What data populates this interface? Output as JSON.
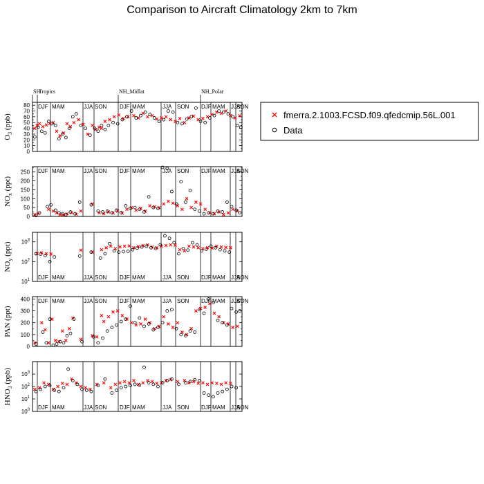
{
  "chart_data": {
    "type": "scatter",
    "title": "Comparison to Aircraft Climatology  2km to 7km",
    "regions": [
      "SH",
      "Tropics",
      "NH_Midlat",
      "NH_Polar"
    ],
    "seasons": [
      "DJF",
      "MAM",
      "JJA",
      "SON"
    ],
    "legend": {
      "placement": "right",
      "entries": [
        {
          "name": "fmerra.2.1003.FCSD.f09.qfedcmip.56L.001",
          "marker": "x",
          "color": "#ff0000"
        },
        {
          "name": "Data",
          "marker": "o",
          "color": "#000000"
        }
      ]
    },
    "panels": [
      {
        "ylabel_main": "O",
        "ylabel_sub": "3",
        "ylabel_unit": " (ppb)",
        "scale": "linear",
        "ylim": [
          0,
          85
        ],
        "grid": false,
        "yticks": [
          "0",
          "10",
          "20",
          "30",
          "40",
          "50",
          "60",
          "70",
          "80"
        ],
        "season_label_pos": "top",
        "series": [
          {
            "name": "model",
            "x": [
              2,
              4,
              6,
              9,
              12,
              15,
              18,
              21,
              24,
              27,
              30,
              33,
              36,
              40,
              44,
              48,
              52,
              55,
              58,
              60,
              63,
              67,
              71,
              75,
              79,
              83,
              88,
              92,
              96,
              100,
              104,
              108,
              112,
              116,
              120,
              124,
              128,
              132,
              136,
              140,
              144,
              148,
              152,
              156,
              160,
              164,
              168,
              172,
              176,
              180
            ],
            "y": [
              40,
              45,
              48,
              43,
              46,
              48,
              50,
              35,
              27,
              32,
              48,
              43,
              50,
              55,
              47,
              30,
              45,
              38,
              42,
              40,
              52,
              55,
              60,
              63,
              57,
              60,
              62,
              58,
              66,
              60,
              62,
              56,
              58,
              60,
              55,
              52,
              57,
              50,
              58,
              61,
              55,
              57,
              60,
              64,
              68,
              66,
              70,
              62,
              58,
              62
            ]
          },
          {
            "name": "data",
            "x": [
              2,
              5,
              8,
              11,
              14,
              17,
              20,
              23,
              26,
              29,
              32,
              35,
              38,
              42,
              46,
              50,
              54,
              57,
              60,
              63,
              66,
              70,
              74,
              78,
              82,
              86,
              90,
              94,
              98,
              102,
              106,
              110,
              114,
              118,
              122,
              126,
              130,
              134,
              138,
              142,
              146,
              150,
              154,
              158,
              162,
              166,
              170,
              174,
              178,
              181
            ],
            "y": [
              25,
              42,
              35,
              32,
              52,
              48,
              45,
              22,
              30,
              24,
              40,
              60,
              65,
              45,
              40,
              28,
              40,
              35,
              45,
              38,
              45,
              50,
              48,
              55,
              60,
              70,
              58,
              62,
              68,
              64,
              58,
              52,
              55,
              70,
              68,
              50,
              48,
              56,
              60,
              75,
              52,
              50,
              58,
              62,
              70,
              68,
              65,
              60,
              45,
              42
            ]
          }
        ]
      },
      {
        "ylabel_main": "NO",
        "ylabel_sub": "x",
        "ylabel_unit": " (ppt)",
        "scale": "linear",
        "ylim": [
          0,
          280
        ],
        "grid": false,
        "yticks": [
          "0",
          "50",
          "100",
          "150",
          "200",
          "250"
        ],
        "season_label_pos": "top",
        "series": [
          {
            "name": "model",
            "x": [
              2,
              5,
              14,
              18,
              21,
              24,
              27,
              30,
              34,
              38,
              42,
              52,
              58,
              62,
              66,
              70,
              74,
              78,
              82,
              86,
              90,
              94,
              98,
              102,
              106,
              110,
              114,
              118,
              122,
              126,
              130,
              134,
              138,
              142,
              146,
              150,
              154,
              158,
              162,
              166,
              170,
              174,
              178
            ],
            "y": [
              10,
              15,
              40,
              30,
              20,
              10,
              8,
              15,
              20,
              12,
              30,
              70,
              20,
              15,
              25,
              20,
              30,
              18,
              40,
              50,
              35,
              45,
              30,
              60,
              55,
              50,
              70,
              85,
              75,
              60,
              40,
              100,
              50,
              80,
              70,
              40,
              20,
              15,
              25,
              10,
              20,
              40,
              30
            ]
          },
          {
            "name": "data",
            "x": [
              3,
              6,
              13,
              16,
              20,
              23,
              26,
              29,
              33,
              37,
              41,
              51,
              57,
              61,
              65,
              69,
              73,
              77,
              81,
              85,
              89,
              93,
              97,
              101,
              105,
              109,
              113,
              117,
              121,
              125,
              129,
              133,
              137,
              141,
              145,
              149,
              153,
              157,
              161,
              165,
              169,
              173,
              177,
              180
            ],
            "y": [
              5,
              20,
              55,
              65,
              35,
              20,
              15,
              10,
              25,
              15,
              80,
              65,
              30,
              25,
              30,
              20,
              35,
              22,
              60,
              45,
              50,
              40,
              25,
              110,
              50,
              45,
              280,
              270,
              140,
              70,
              195,
              80,
              145,
              40,
              30,
              15,
              20,
              15,
              30,
              25,
              80,
              55,
              35,
              20
            ]
          }
        ]
      },
      {
        "ylabel_main": "NO",
        "ylabel_sub": "y",
        "ylabel_unit": " (ppt)",
        "scale": "log",
        "ylim": [
          10,
          3000
        ],
        "grid": false,
        "yticks": [
          "10",
          "10",
          "10"
        ],
        "yticks_sup": [
          "1",
          "2",
          "3"
        ],
        "season_label_pos": "bottom",
        "series": [
          {
            "name": "model",
            "x": [
              4,
              8,
              12,
              16,
              42,
              52,
              60,
              64,
              68,
              72,
              76,
              80,
              84,
              88,
              92,
              96,
              100,
              104,
              108,
              112,
              116,
              120,
              124,
              128,
              132,
              136,
              140,
              144,
              148,
              152,
              156,
              160,
              164,
              168,
              172
            ],
            "y": [
              260,
              280,
              250,
              240,
              380,
              300,
              400,
              500,
              600,
              450,
              550,
              600,
              620,
              500,
              580,
              650,
              700,
              550,
              500,
              600,
              650,
              700,
              680,
              400,
              350,
              600,
              550,
              500,
              450,
              500,
              480,
              600,
              550,
              520,
              500
            ]
          },
          {
            "name": "data",
            "x": [
              3,
              7,
              11,
              15,
              19,
              41,
              51,
              59,
              63,
              67,
              71,
              75,
              79,
              83,
              87,
              91,
              95,
              99,
              103,
              107,
              111,
              115,
              119,
              123,
              127,
              131,
              135,
              139,
              143,
              147,
              151,
              155,
              159,
              163,
              167,
              171
            ],
            "y": [
              250,
              240,
              200,
              100,
              170,
              190,
              300,
              150,
              250,
              800,
              350,
              300,
              320,
              330,
              400,
              480,
              550,
              600,
              500,
              450,
              700,
              2000,
              1500,
              900,
              250,
              450,
              380,
              900,
              700,
              350,
              420,
              600,
              500,
              400,
              350,
              300
            ]
          }
        ]
      },
      {
        "ylabel_main": "PAN",
        "ylabel_sub": "",
        "ylabel_unit": " (ppt)",
        "scale": "linear",
        "ylim": [
          0,
          420
        ],
        "grid": false,
        "yticks": [
          "0",
          "100",
          "200",
          "300",
          "400"
        ],
        "season_label_pos": "top",
        "series": [
          {
            "name": "model",
            "x": [
              2,
              8,
              11,
              14,
              17,
              20,
              23,
              26,
              29,
              32,
              35,
              42,
              52,
              56,
              60,
              62,
              66,
              70,
              74,
              78,
              82,
              86,
              90,
              94,
              98,
              102,
              106,
              110,
              114,
              118,
              122,
              126,
              130,
              134,
              138,
              142,
              146,
              150,
              154,
              158,
              162,
              166,
              170,
              174,
              178
            ],
            "y": [
              30,
              200,
              140,
              30,
              230,
              50,
              40,
              130,
              50,
              150,
              240,
              60,
              90,
              80,
              260,
              210,
              250,
              290,
              300,
              260,
              230,
              200,
              180,
              190,
              230,
              200,
              150,
              170,
              250,
              190,
              160,
              200,
              120,
              100,
              150,
              300,
              320,
              330,
              360,
              280,
              250,
              200,
              190,
              160,
              170
            ]
          },
          {
            "name": "data",
            "x": [
              3,
              9,
              12,
              15,
              18,
              21,
              24,
              27,
              30,
              33,
              36,
              43,
              53,
              57,
              61,
              65,
              69,
              73,
              77,
              81,
              85,
              89,
              93,
              97,
              101,
              105,
              109,
              113,
              117,
              121,
              125,
              129,
              133,
              137,
              141,
              145,
              149,
              153,
              157,
              161,
              165,
              169,
              173,
              177,
              180
            ],
            "y": [
              20,
              120,
              30,
              230,
              10,
              20,
              40,
              30,
              90,
              110,
              230,
              40,
              80,
              30,
              70,
              130,
              160,
              180,
              210,
              230,
              340,
              200,
              240,
              170,
              190,
              140,
              160,
              200,
              300,
              310,
              150,
              100,
              90,
              130,
              120,
              310,
              280,
              400,
              370,
              220,
              200,
              180,
              320,
              290,
              300
            ]
          }
        ]
      },
      {
        "ylabel_main": "HNO",
        "ylabel_sub": "3",
        "ylabel_unit": " (ppb)",
        "scale": "log",
        "ylim": [
          1,
          10000
        ],
        "grid": false,
        "yticks": [
          "10",
          "10",
          "10",
          "10"
        ],
        "yticks_sup": [
          "0",
          "1",
          "2",
          "3"
        ],
        "season_label_pos": "bottom",
        "series": [
          {
            "name": "model",
            "x": [
              2,
              6,
              10,
              14,
              18,
              22,
              26,
              30,
              34,
              38,
              42,
              46,
              50,
              56,
              62,
              68,
              72,
              76,
              80,
              84,
              88,
              92,
              96,
              100,
              104,
              108,
              112,
              116,
              120,
              126,
              132,
              136,
              140,
              144,
              148,
              152,
              156,
              160,
              164,
              168,
              172
            ],
            "y": [
              60,
              80,
              200,
              150,
              60,
              100,
              180,
              150,
              400,
              200,
              100,
              80,
              60,
              150,
              200,
              80,
              150,
              200,
              250,
              200,
              300,
              150,
              200,
              300,
              250,
              180,
              200,
              300,
              350,
              250,
              300,
              200,
              250,
              180,
              200,
              150,
              200,
              180,
              150,
              200,
              180
            ]
          },
          {
            "name": "data",
            "x": [
              3,
              7,
              11,
              15,
              19,
              23,
              27,
              31,
              35,
              39,
              43,
              47,
              51,
              57,
              63,
              69,
              73,
              77,
              81,
              85,
              89,
              93,
              97,
              101,
              105,
              109,
              113,
              117,
              121,
              127,
              133,
              137,
              141,
              145,
              149,
              153,
              157,
              161,
              165,
              169,
              173,
              177
            ],
            "y": [
              40,
              60,
              100,
              120,
              50,
              40,
              80,
              2500,
              300,
              150,
              60,
              50,
              40,
              120,
              400,
              30,
              50,
              80,
              100,
              120,
              150,
              130,
              3500,
              200,
              150,
              100,
              200,
              300,
              400,
              150,
              200,
              250,
              350,
              300,
              30,
              20,
              15,
              30,
              40,
              60,
              100,
              80
            ]
          }
        ]
      }
    ]
  }
}
